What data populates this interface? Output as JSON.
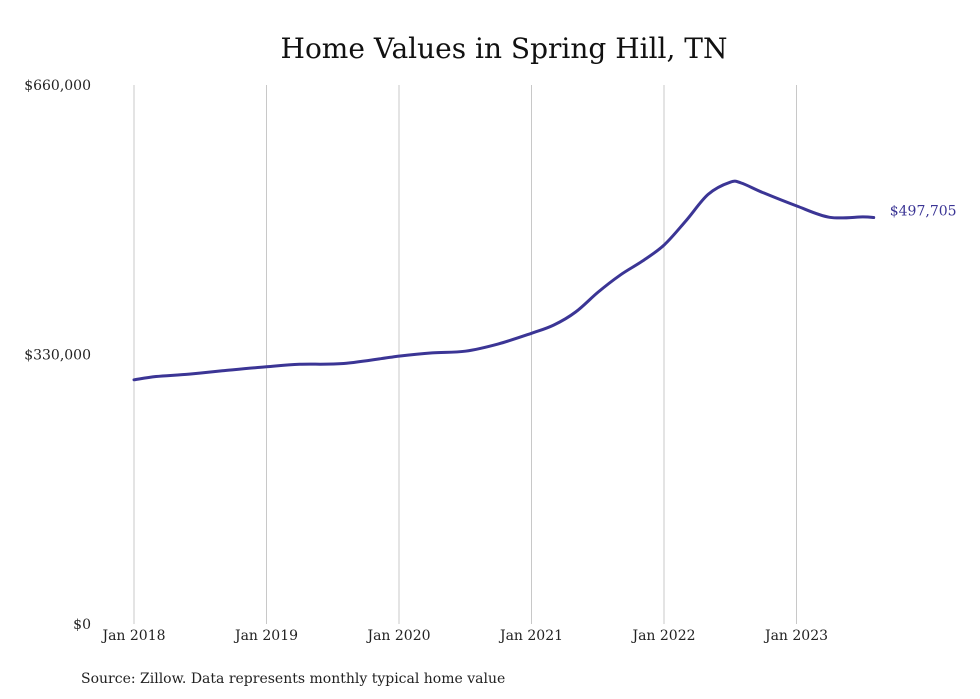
{
  "chart_data": {
    "type": "line",
    "title": "Home Values in Spring Hill, TN",
    "xlabel": "",
    "ylabel": "",
    "ylim": [
      0,
      660000
    ],
    "yticks": [
      {
        "value": 0,
        "label": "$0"
      },
      {
        "value": 330000,
        "label": "$330,000"
      },
      {
        "value": 660000,
        "label": "$660,000"
      }
    ],
    "xticks": [
      {
        "value": 2018.0,
        "label": "Jan 2018"
      },
      {
        "value": 2019.0,
        "label": "Jan 2019"
      },
      {
        "value": 2020.0,
        "label": "Jan 2020"
      },
      {
        "value": 2021.0,
        "label": "Jan 2021"
      },
      {
        "value": 2022.0,
        "label": "Jan 2022"
      },
      {
        "value": 2023.0,
        "label": "Jan 2023"
      }
    ],
    "xlim": [
      2018.0,
      2023.583
    ],
    "grid": "vertical",
    "color": "#3b3595",
    "end_label": "$497,705",
    "series": [
      {
        "points": [
          {
            "x": 2018.0,
            "y": 299000
          },
          {
            "x": 2018.167,
            "y": 303000
          },
          {
            "x": 2018.417,
            "y": 306000
          },
          {
            "x": 2018.667,
            "y": 310000
          },
          {
            "x": 2019.0,
            "y": 315000
          },
          {
            "x": 2019.25,
            "y": 318000
          },
          {
            "x": 2019.583,
            "y": 319000
          },
          {
            "x": 2020.0,
            "y": 328000
          },
          {
            "x": 2020.25,
            "y": 332000
          },
          {
            "x": 2020.5,
            "y": 334000
          },
          {
            "x": 2020.75,
            "y": 343000
          },
          {
            "x": 2021.0,
            "y": 356000
          },
          {
            "x": 2021.167,
            "y": 366000
          },
          {
            "x": 2021.333,
            "y": 382000
          },
          {
            "x": 2021.5,
            "y": 406000
          },
          {
            "x": 2021.667,
            "y": 427000
          },
          {
            "x": 2021.833,
            "y": 444000
          },
          {
            "x": 2022.0,
            "y": 464000
          },
          {
            "x": 2022.167,
            "y": 494000
          },
          {
            "x": 2022.333,
            "y": 526000
          },
          {
            "x": 2022.5,
            "y": 541000
          },
          {
            "x": 2022.583,
            "y": 540000
          },
          {
            "x": 2022.75,
            "y": 528000
          },
          {
            "x": 2023.0,
            "y": 512000
          },
          {
            "x": 2023.25,
            "y": 498000
          },
          {
            "x": 2023.5,
            "y": 498500
          },
          {
            "x": 2023.583,
            "y": 497705
          }
        ]
      }
    ]
  },
  "source": "Source: Zillow. Data represents monthly typical home value"
}
